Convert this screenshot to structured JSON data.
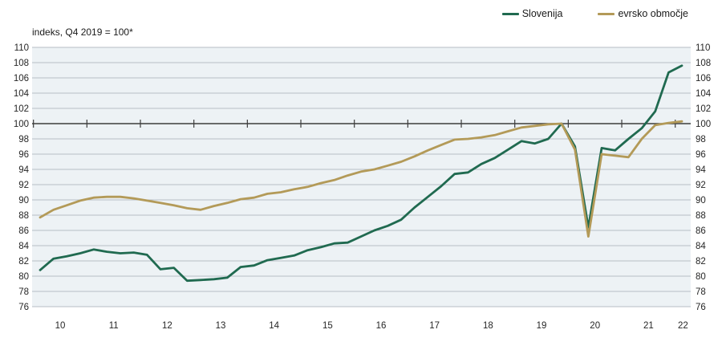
{
  "subtitle": "indeks, Q4 2019 = 100*",
  "legend": [
    {
      "label": "Slovenija"
    },
    {
      "label": "evrsko območje"
    }
  ],
  "colors": {
    "band_background": "#edf2f5",
    "gridline": "#b7bec5",
    "baseline": "#3d3d3d",
    "axis_text": "#262626"
  },
  "chart_data": {
    "type": "line",
    "title": "indeks, Q4 2019 = 100*",
    "frequency": "quarterly",
    "x_start": "2010Q1",
    "x_end": "2022Q1",
    "x_tick_labels": [
      "10",
      "11",
      "12",
      "13",
      "14",
      "15",
      "16",
      "17",
      "18",
      "19",
      "20",
      "21",
      "22"
    ],
    "ylim": [
      76,
      110
    ],
    "y_tick_step": 2,
    "y_ticks": [
      76,
      78,
      80,
      82,
      84,
      86,
      88,
      90,
      92,
      94,
      96,
      98,
      100,
      102,
      104,
      106,
      108,
      110
    ],
    "baseline_value": 100,
    "grid": "horizontal",
    "legend_position": "top-right",
    "y_axis_labels_on_both_sides": true,
    "series": [
      {
        "name": "Slovenija",
        "color": "#206a50",
        "values": [
          80.8,
          82.3,
          82.6,
          83.0,
          83.5,
          83.2,
          83.0,
          83.1,
          82.8,
          80.9,
          81.1,
          79.4,
          79.5,
          79.6,
          79.8,
          81.2,
          81.4,
          82.1,
          82.4,
          82.7,
          83.4,
          83.8,
          84.3,
          84.4,
          85.2,
          86.0,
          86.6,
          87.4,
          89.0,
          90.4,
          91.8,
          93.4,
          93.6,
          94.7,
          95.5,
          96.6,
          97.7,
          97.4,
          98.0,
          100.0,
          97.0,
          86.4,
          96.8,
          96.5,
          98.0,
          99.4,
          101.6,
          106.7,
          107.6
        ]
      },
      {
        "name": "evrsko območje",
        "color": "#b39a58",
        "values": [
          87.7,
          88.7,
          89.3,
          89.9,
          90.3,
          90.4,
          90.4,
          90.2,
          89.9,
          89.6,
          89.3,
          88.9,
          88.7,
          89.2,
          89.6,
          90.1,
          90.3,
          90.8,
          91.0,
          91.4,
          91.7,
          92.2,
          92.6,
          93.2,
          93.7,
          94.0,
          94.5,
          95.0,
          95.7,
          96.5,
          97.2,
          97.9,
          98.0,
          98.2,
          98.5,
          99.0,
          99.5,
          99.7,
          99.9,
          100.0,
          96.6,
          85.2,
          96.0,
          95.8,
          95.6,
          98.0,
          99.8,
          100.1,
          100.3
        ]
      }
    ]
  }
}
